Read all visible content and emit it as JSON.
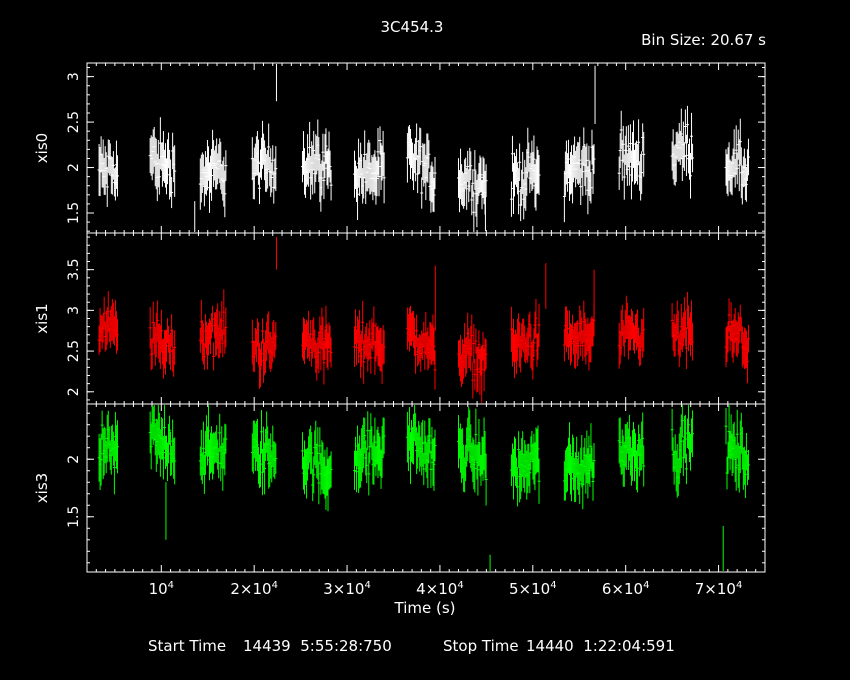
{
  "title": "3C454.3",
  "bin_size": "Bin Size: 20.67 s",
  "footer": {
    "start_label": "Start Time",
    "start_value": "14439  5:55:28:750",
    "stop_label": "Stop Time",
    "stop_value": "14440  1:22:04:591"
  },
  "chart_data": {
    "type": "scatter",
    "xlabel": "Time (s)",
    "xlim": [
      2000,
      75000
    ],
    "x_ticks": [
      {
        "value": 10000,
        "label_base": "10",
        "label_exp": "4"
      },
      {
        "value": 20000,
        "label_base": "2×10",
        "label_exp": "4"
      },
      {
        "value": 30000,
        "label_base": "3×10",
        "label_exp": "4"
      },
      {
        "value": 40000,
        "label_base": "4×10",
        "label_exp": "4"
      },
      {
        "value": 50000,
        "label_base": "5×10",
        "label_exp": "4"
      },
      {
        "value": 60000,
        "label_base": "6×10",
        "label_exp": "4"
      },
      {
        "value": 70000,
        "label_base": "7×10",
        "label_exp": "4"
      }
    ],
    "segments": [
      {
        "start": 3300,
        "end": 5300,
        "tilt": 0.0
      },
      {
        "start": 8800,
        "end": 11500,
        "tilt": -0.05
      },
      {
        "start": 14200,
        "end": 17000,
        "tilt": 0.02
      },
      {
        "start": 19800,
        "end": 22400,
        "tilt": 0.0
      },
      {
        "start": 25200,
        "end": 28300,
        "tilt": -0.06
      },
      {
        "start": 30800,
        "end": 34000,
        "tilt": 0.0
      },
      {
        "start": 36500,
        "end": 39500,
        "tilt": -0.12
      },
      {
        "start": 42000,
        "end": 45000,
        "tilt": -0.05
      },
      {
        "start": 47700,
        "end": 50700,
        "tilt": 0.04
      },
      {
        "start": 53400,
        "end": 56600,
        "tilt": 0.03
      },
      {
        "start": 59300,
        "end": 62000,
        "tilt": 0.02
      },
      {
        "start": 65000,
        "end": 67300,
        "tilt": 0.04
      },
      {
        "start": 70800,
        "end": 73300,
        "tilt": -0.05
      }
    ],
    "panels": [
      {
        "name": "xis0",
        "color": "#ffffff",
        "ylim": [
          1.28,
          3.15
        ],
        "yticks": [
          1.5,
          2,
          2.5,
          3
        ],
        "ytick_labels": [
          "1.5",
          "2",
          "2.5",
          "3"
        ],
        "level": [
          1.95,
          2.05,
          1.95,
          2.0,
          2.05,
          1.95,
          2.0,
          1.85,
          1.9,
          2.0,
          2.1,
          2.2,
          2.0
        ],
        "scatter": 0.18,
        "err": 0.22,
        "spikes": [
          {
            "x": 22400,
            "y": 2.95,
            "err": 0.22
          },
          {
            "x": 56700,
            "y": 2.8,
            "err": 0.32
          },
          {
            "x": 13600,
            "y": 1.45,
            "err": 0.18
          },
          {
            "x": 44900,
            "y": 1.5,
            "err": 0.2
          }
        ]
      },
      {
        "name": "xis1",
        "color": "#ff0000",
        "ylim": [
          1.85,
          3.95
        ],
        "yticks": [
          2,
          2.5,
          3,
          3.5
        ],
        "ytick_labels": [
          "2",
          "2.5",
          "3",
          "3.5"
        ],
        "level": [
          2.75,
          2.6,
          2.7,
          2.55,
          2.6,
          2.6,
          2.6,
          2.45,
          2.6,
          2.65,
          2.65,
          2.7,
          2.65
        ],
        "scatter": 0.18,
        "err": 0.22,
        "spikes": [
          {
            "x": 22400,
            "y": 3.7,
            "err": 0.2
          },
          {
            "x": 51400,
            "y": 3.3,
            "err": 0.28
          },
          {
            "x": 56600,
            "y": 3.2,
            "err": 0.3
          },
          {
            "x": 39500,
            "y": 3.15,
            "err": 0.4
          },
          {
            "x": 44500,
            "y": 2.0,
            "err": 0.25
          }
        ]
      },
      {
        "name": "xis3",
        "color": "#00ff00",
        "ylim": [
          1.02,
          2.48
        ],
        "yticks": [
          1.5,
          2
        ],
        "ytick_labels": [
          "1.5",
          "2"
        ],
        "level": [
          2.05,
          2.15,
          2.05,
          2.05,
          1.95,
          2.05,
          2.1,
          2.05,
          1.95,
          1.95,
          2.1,
          2.1,
          2.05
        ],
        "scatter": 0.14,
        "err": 0.18,
        "spikes": [
          {
            "x": 45400,
            "y": 1.05,
            "err": 0.12
          },
          {
            "x": 70500,
            "y": 1.2,
            "err": 0.22
          },
          {
            "x": 10500,
            "y": 1.55,
            "err": 0.25
          }
        ]
      }
    ]
  }
}
